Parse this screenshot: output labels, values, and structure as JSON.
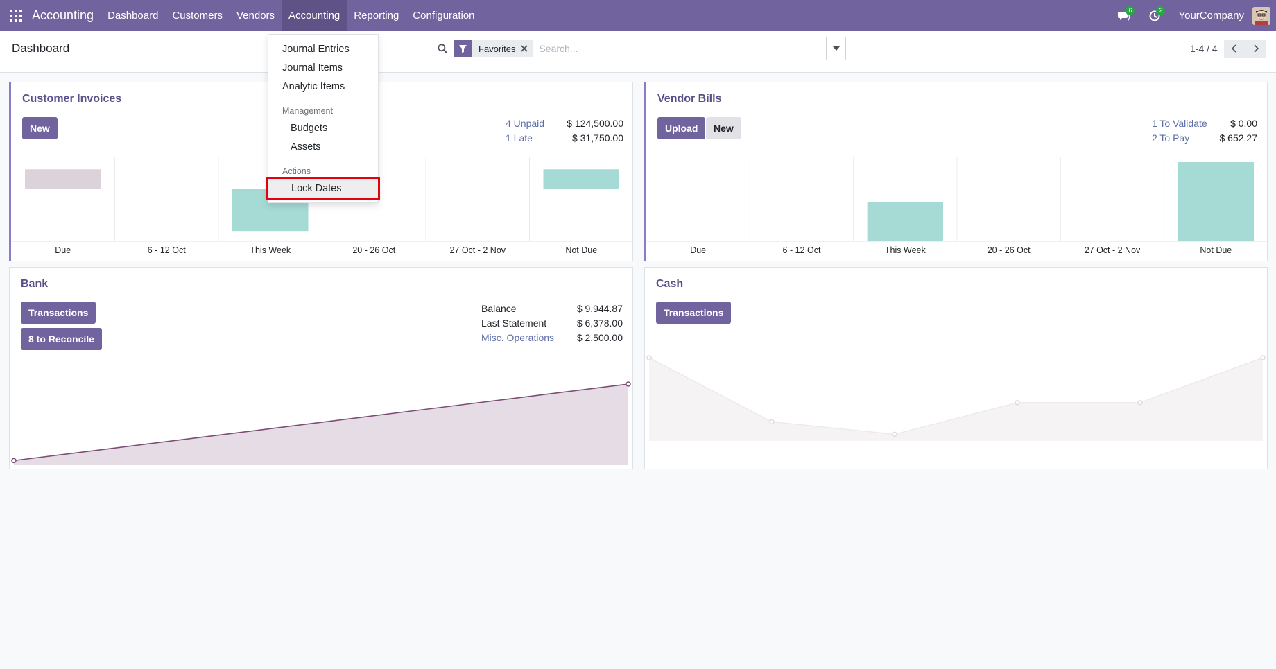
{
  "navbar": {
    "app_name": "Accounting",
    "menu": [
      "Dashboard",
      "Customers",
      "Vendors",
      "Accounting",
      "Reporting",
      "Configuration"
    ],
    "active_menu": "Accounting",
    "messages_count": "6",
    "activities_count": "2",
    "company": "YourCompany",
    "brand_color": "#71639e"
  },
  "control_panel": {
    "title": "Dashboard",
    "search": {
      "facet_label": "Favorites",
      "placeholder": "Search..."
    },
    "pager": "1-4 / 4"
  },
  "accounting_menu": {
    "items": [
      "Journal Entries",
      "Journal Items",
      "Analytic Items"
    ],
    "management_header": "Management",
    "management_items": [
      "Budgets",
      "Assets"
    ],
    "actions_header": "Actions",
    "actions_items": [
      "Lock Dates"
    ],
    "highlighted": "Lock Dates"
  },
  "cards": {
    "customer_invoices": {
      "title": "Customer Invoices",
      "new_label": "New",
      "stats": [
        {
          "label": "4 Unpaid",
          "value": "$ 124,500.00"
        },
        {
          "label": "1 Late",
          "value": "$ 31,750.00"
        }
      ]
    },
    "vendor_bills": {
      "title": "Vendor Bills",
      "upload_label": "Upload",
      "new_label": "New",
      "stats": [
        {
          "label": "1 To Validate",
          "value": "$ 0.00"
        },
        {
          "label": "2 To Pay",
          "value": "$ 652.27"
        }
      ]
    },
    "bank": {
      "title": "Bank",
      "transactions_label": "Transactions",
      "reconcile_label": "8 to Reconcile",
      "stats": [
        {
          "label": "Balance",
          "value": "$ 9,944.87"
        },
        {
          "label": "Last Statement",
          "value": "$ 6,378.00"
        },
        {
          "label": "Misc. Operations",
          "value": "$ 2,500.00"
        }
      ]
    },
    "cash": {
      "title": "Cash",
      "transactions_label": "Transactions"
    }
  },
  "chart_data": [
    {
      "type": "bar",
      "categories": [
        "Due",
        "6 - 12 Oct",
        "This Week",
        "20 - 26 Oct",
        "27 Oct - 2 Nov",
        "Not Due"
      ],
      "series_colors": [
        "#dcd2da",
        "#a6dad5",
        "#a6dad5",
        "#a6dad5",
        "#a6dad5",
        "#a6dad5"
      ],
      "floating_bars": [
        {
          "category": "Due",
          "from": 0.91,
          "to": 0.66
        },
        {
          "category": "This Week",
          "from": 0.66,
          "to": 0.13
        },
        {
          "category": "Not Due",
          "from": 0.91,
          "to": 0.66
        }
      ]
    },
    {
      "type": "bar",
      "categories": [
        "Due",
        "6 - 12 Oct",
        "This Week",
        "20 - 26 Oct",
        "27 Oct - 2 Nov",
        "Not Due"
      ],
      "values": [
        0,
        0,
        0.5,
        0,
        0,
        1.0
      ]
    },
    {
      "type": "area",
      "points": [
        0.11,
        1.0
      ],
      "color": "#7c4d74"
    },
    {
      "type": "area",
      "points": [
        1.0,
        0.23,
        0.08,
        0.46,
        0.46,
        1.0
      ],
      "color": "#e8e4e8"
    }
  ]
}
